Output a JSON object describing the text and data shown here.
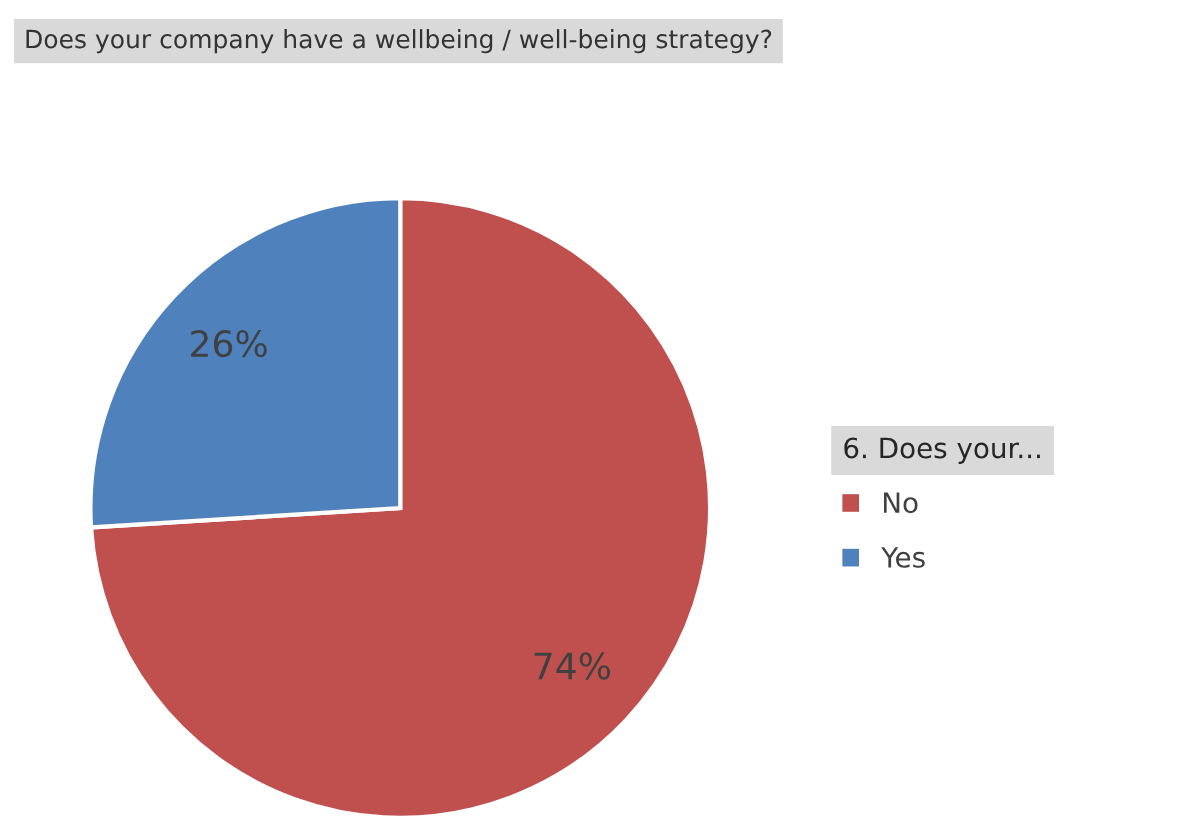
{
  "chart_data": {
    "type": "pie",
    "title": "Does your company have a wellbeing / well-being strategy?",
    "legend_title": "6. Does your...",
    "categories": [
      "No",
      "Yes"
    ],
    "values": [
      74,
      26
    ],
    "colors": [
      "#c0504d",
      "#4f81bd"
    ],
    "value_labels": [
      "74%",
      "26%"
    ],
    "legend": "right"
  }
}
